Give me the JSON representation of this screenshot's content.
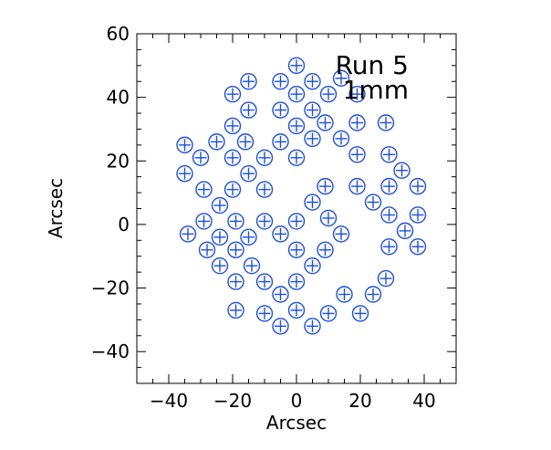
{
  "chart_data": {
    "type": "scatter",
    "xlabel": "Arcsec",
    "ylabel": "Arcsec",
    "xlim": [
      -50,
      50
    ],
    "ylim": [
      -50,
      60
    ],
    "x_ticks": [
      -40,
      -20,
      0,
      20,
      40
    ],
    "y_ticks": [
      -40,
      -20,
      0,
      20,
      40,
      60
    ],
    "x_tick_labels": [
      "−40",
      "−20",
      "0",
      "20",
      "40"
    ],
    "y_tick_labels": [
      "−40",
      "−20",
      "0",
      "20",
      "40",
      "60"
    ],
    "grid": false,
    "marker": "circle-plus",
    "marker_color": "#1f4fd8",
    "annotations": [
      "Run  5",
      "1mm"
    ],
    "points": [
      [
        0,
        50
      ],
      [
        -5,
        45
      ],
      [
        5,
        45
      ],
      [
        -15,
        45
      ],
      [
        14,
        46
      ],
      [
        -20,
        41
      ],
      [
        0,
        41
      ],
      [
        10,
        41
      ],
      [
        19,
        41
      ],
      [
        -15,
        36
      ],
      [
        -5,
        36
      ],
      [
        5,
        36
      ],
      [
        -20,
        31
      ],
      [
        0,
        31
      ],
      [
        9,
        32
      ],
      [
        19,
        32
      ],
      [
        28,
        32
      ],
      [
        -25,
        26
      ],
      [
        -16,
        26
      ],
      [
        -5,
        26
      ],
      [
        5,
        27
      ],
      [
        14,
        27
      ],
      [
        -35,
        25
      ],
      [
        -30,
        21
      ],
      [
        -20,
        21
      ],
      [
        -10,
        21
      ],
      [
        0,
        21
      ],
      [
        19,
        22
      ],
      [
        29,
        22
      ],
      [
        -35,
        16
      ],
      [
        -15,
        16
      ],
      [
        33,
        17
      ],
      [
        -29,
        11
      ],
      [
        -20,
        11
      ],
      [
        -10,
        11
      ],
      [
        9,
        12
      ],
      [
        19,
        12
      ],
      [
        29,
        12
      ],
      [
        38,
        12
      ],
      [
        -24,
        6
      ],
      [
        5,
        7
      ],
      [
        24,
        7
      ],
      [
        -29,
        1
      ],
      [
        -19,
        1
      ],
      [
        -10,
        1
      ],
      [
        0,
        1
      ],
      [
        10,
        2
      ],
      [
        29,
        3
      ],
      [
        38,
        3
      ],
      [
        -34,
        -3
      ],
      [
        -24,
        -4
      ],
      [
        -15,
        -4
      ],
      [
        -5,
        -3
      ],
      [
        14,
        -3
      ],
      [
        34,
        -2
      ],
      [
        -28,
        -8
      ],
      [
        -19,
        -8
      ],
      [
        0,
        -8
      ],
      [
        9,
        -8
      ],
      [
        29,
        -7
      ],
      [
        38,
        -7
      ],
      [
        -24,
        -13
      ],
      [
        -14,
        -13
      ],
      [
        5,
        -13
      ],
      [
        -19,
        -18
      ],
      [
        -10,
        -18
      ],
      [
        0,
        -18
      ],
      [
        28,
        -17
      ],
      [
        -5,
        -22
      ],
      [
        15,
        -22
      ],
      [
        24,
        -22
      ],
      [
        -19,
        -27
      ],
      [
        -10,
        -28
      ],
      [
        0,
        -27
      ],
      [
        10,
        -28
      ],
      [
        20,
        -28
      ],
      [
        -5,
        -32
      ],
      [
        5,
        -32
      ]
    ]
  }
}
